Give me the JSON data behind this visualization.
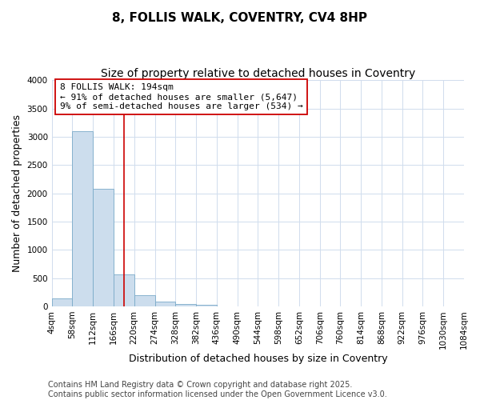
{
  "title1": "8, FOLLIS WALK, COVENTRY, CV4 8HP",
  "title2": "Size of property relative to detached houses in Coventry",
  "xlabel": "Distribution of detached houses by size in Coventry",
  "ylabel": "Number of detached properties",
  "bin_labels": [
    "4sqm",
    "58sqm",
    "112sqm",
    "166sqm",
    "220sqm",
    "274sqm",
    "328sqm",
    "382sqm",
    "436sqm",
    "490sqm",
    "544sqm",
    "598sqm",
    "652sqm",
    "706sqm",
    "760sqm",
    "814sqm",
    "868sqm",
    "922sqm",
    "976sqm",
    "1030sqm",
    "1084sqm"
  ],
  "bin_edges": [
    4,
    58,
    112,
    166,
    220,
    274,
    328,
    382,
    436,
    490,
    544,
    598,
    652,
    706,
    760,
    814,
    868,
    922,
    976,
    1030,
    1084
  ],
  "counts": [
    140,
    3100,
    2080,
    570,
    200,
    80,
    40,
    30,
    0,
    0,
    0,
    0,
    0,
    0,
    0,
    0,
    0,
    0,
    0,
    0
  ],
  "bar_color": "#ccdded",
  "bar_edge_color": "#7aaac8",
  "red_line_x": 194,
  "annotation_line1": "8 FOLLIS WALK: 194sqm",
  "annotation_line2": "← 91% of detached houses are smaller (5,647)",
  "annotation_line3": "9% of semi-detached houses are larger (534) →",
  "annotation_box_facecolor": "#ffffff",
  "annotation_box_edgecolor": "#cc0000",
  "ylim": [
    0,
    4000
  ],
  "yticks": [
    0,
    500,
    1000,
    1500,
    2000,
    2500,
    3000,
    3500,
    4000
  ],
  "bg_color": "#ffffff",
  "grid_color": "#d0dced",
  "title1_fontsize": 11,
  "title2_fontsize": 10,
  "axis_label_fontsize": 9,
  "tick_fontsize": 7.5,
  "footer_fontsize": 7,
  "annotation_fontsize": 8,
  "footer_line1": "Contains HM Land Registry data © Crown copyright and database right 2025.",
  "footer_line2": "Contains public sector information licensed under the Open Government Licence v3.0."
}
